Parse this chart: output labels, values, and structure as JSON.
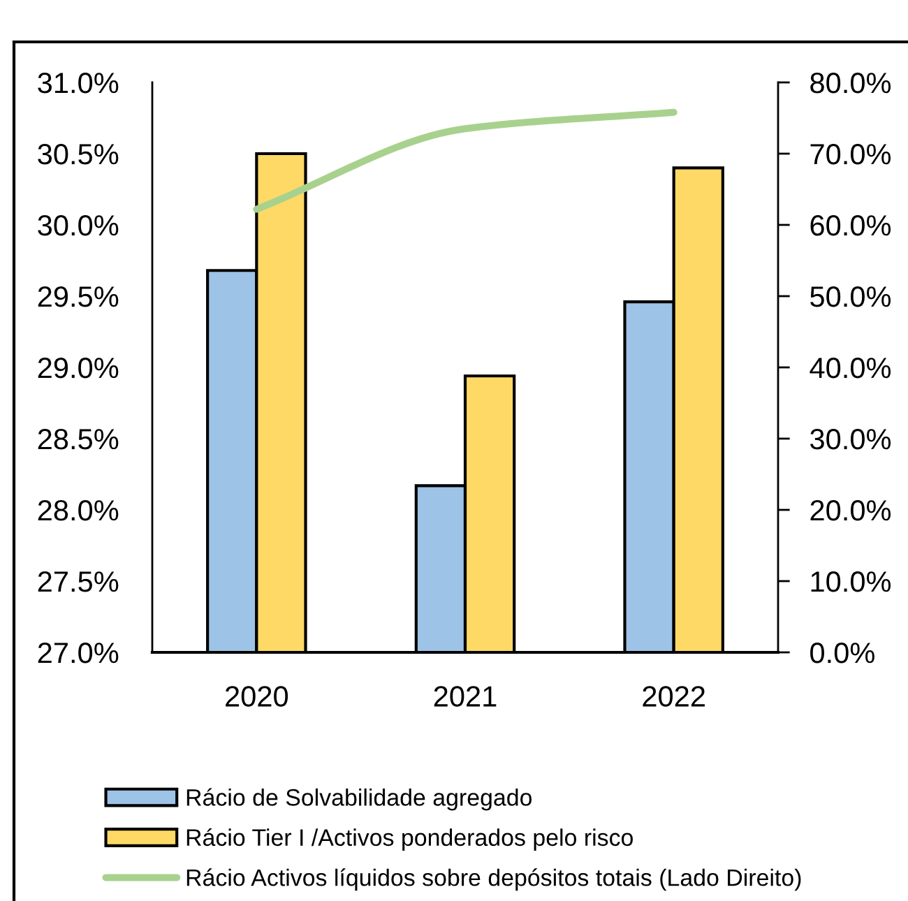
{
  "chart_data": {
    "type": "bar",
    "categories": [
      "2020",
      "2021",
      "2022"
    ],
    "series": [
      {
        "name": "Rácio de Solvabilidade agregado",
        "color": "#9dc3e6",
        "values": [
          29.68,
          28.17,
          29.46
        ]
      },
      {
        "name": "Rácio Tier I /Activos ponderados pelo risco",
        "color": "#ffd966",
        "values": [
          30.5,
          28.94,
          30.4
        ]
      },
      {
        "name": "Rácio Activos líquidos sobre depósitos totais (Lado Direito)",
        "type": "line",
        "axis": "y2",
        "color": "#a9d18e",
        "values": [
          62.2,
          73.5,
          75.8
        ]
      }
    ],
    "ylim": [
      27,
      31
    ],
    "yticks": [
      {
        "value": 27,
        "label": "27.0%"
      },
      {
        "value": 27.5,
        "label": "27.5%"
      },
      {
        "value": 28,
        "label": "28.0%"
      },
      {
        "value": 28.5,
        "label": "28.5%"
      },
      {
        "value": 29,
        "label": "29.0%"
      },
      {
        "value": 29.5,
        "label": "29.5%"
      },
      {
        "value": 30,
        "label": "30.0%"
      },
      {
        "value": 30.5,
        "label": "30.5%"
      },
      {
        "value": 31,
        "label": "31.0%"
      }
    ],
    "y2lim": [
      0,
      80
    ],
    "y2ticks": [
      {
        "value": 0,
        "label": "0.0%"
      },
      {
        "value": 10,
        "label": "10.0%"
      },
      {
        "value": 20,
        "label": "20.0%"
      },
      {
        "value": 30,
        "label": "30.0%"
      },
      {
        "value": 40,
        "label": "40.0%"
      },
      {
        "value": 50,
        "label": "50.0%"
      },
      {
        "value": 60,
        "label": "60.0%"
      },
      {
        "value": 70,
        "label": "70.0%"
      },
      {
        "value": 80,
        "label": "80.0%"
      }
    ],
    "legend": "bottom"
  }
}
